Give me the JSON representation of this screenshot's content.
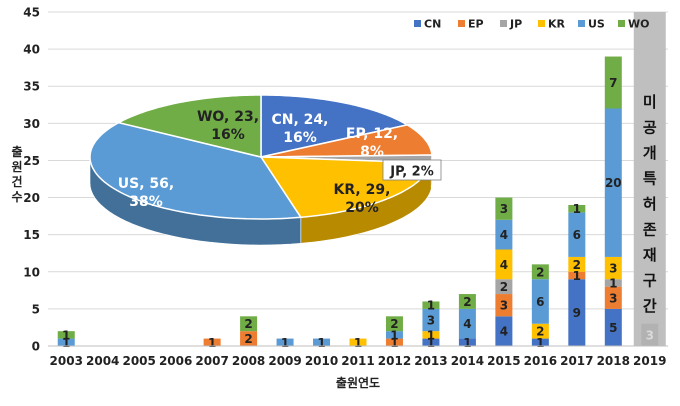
{
  "chart_data": [
    {
      "type": "bar",
      "stacked": true,
      "title": "",
      "xlabel": "출원연도",
      "ylabel": "출원건수",
      "ylim": [
        0,
        45
      ],
      "yticks": [
        0,
        5,
        10,
        15,
        20,
        25,
        30,
        35,
        40,
        45
      ],
      "grid": true,
      "legend_position": "top-right",
      "categories": [
        "2003",
        "2004",
        "2005",
        "2006",
        "2007",
        "2008",
        "2009",
        "2010",
        "2011",
        "2012",
        "2013",
        "2014",
        "2015",
        "2016",
        "2017",
        "2018",
        "2019"
      ],
      "series": [
        {
          "name": "CN",
          "color": "#4472C4",
          "values": [
            0,
            0,
            0,
            0,
            0,
            0,
            0,
            0,
            0,
            0,
            1,
            1,
            4,
            1,
            9,
            5,
            0
          ]
        },
        {
          "name": "EP",
          "color": "#ED7D31",
          "values": [
            0,
            0,
            0,
            0,
            1,
            2,
            0,
            0,
            0,
            1,
            0,
            0,
            3,
            0,
            1,
            3,
            0
          ]
        },
        {
          "name": "JP",
          "color": "#A5A5A5",
          "values": [
            0,
            0,
            0,
            0,
            0,
            0,
            0,
            0,
            0,
            0,
            0,
            0,
            2,
            0,
            0,
            1,
            3
          ]
        },
        {
          "name": "KR",
          "color": "#FFC000",
          "values": [
            0,
            0,
            0,
            0,
            0,
            0,
            0,
            0,
            1,
            0,
            1,
            0,
            4,
            2,
            2,
            3,
            0
          ]
        },
        {
          "name": "US",
          "color": "#5B9BD5",
          "values": [
            1,
            0,
            0,
            0,
            0,
            0,
            1,
            1,
            0,
            1,
            3,
            4,
            4,
            6,
            6,
            20,
            0
          ]
        },
        {
          "name": "WO",
          "color": "#70AD47",
          "values": [
            1,
            0,
            0,
            0,
            0,
            2,
            0,
            0,
            0,
            2,
            1,
            2,
            3,
            2,
            1,
            7,
            0
          ]
        }
      ],
      "annotation": {
        "category": "2019",
        "text": "미공개특허존재구간",
        "chars": [
          "미",
          "공",
          "개",
          "특",
          "허",
          "존",
          "재",
          "구",
          "간"
        ],
        "color": "#BFBFBF"
      }
    },
    {
      "type": "pie",
      "style": "3d",
      "slices": [
        {
          "name": "CN",
          "value": 24,
          "percent": "16%",
          "color": "#4472C4",
          "label1": "CN, 24,",
          "label2": "16%"
        },
        {
          "name": "EP",
          "value": 12,
          "percent": "8%",
          "color": "#ED7D31",
          "label1": "EP, 12,",
          "label2": "8%"
        },
        {
          "name": "JP",
          "value": 3,
          "percent": "2%",
          "color": "#A5A5A5",
          "label1": "JP, 2%",
          "label2": ""
        },
        {
          "name": "KR",
          "value": 29,
          "percent": "20%",
          "color": "#FFC000",
          "label1": "KR, 29,",
          "label2": "20%"
        },
        {
          "name": "US",
          "value": 56,
          "percent": "38%",
          "color": "#5B9BD5",
          "label1": "US, 56,",
          "label2": "38%"
        },
        {
          "name": "WO",
          "value": 23,
          "percent": "16%",
          "color": "#70AD47",
          "label1": "WO, 23,",
          "label2": "16%"
        }
      ]
    }
  ]
}
